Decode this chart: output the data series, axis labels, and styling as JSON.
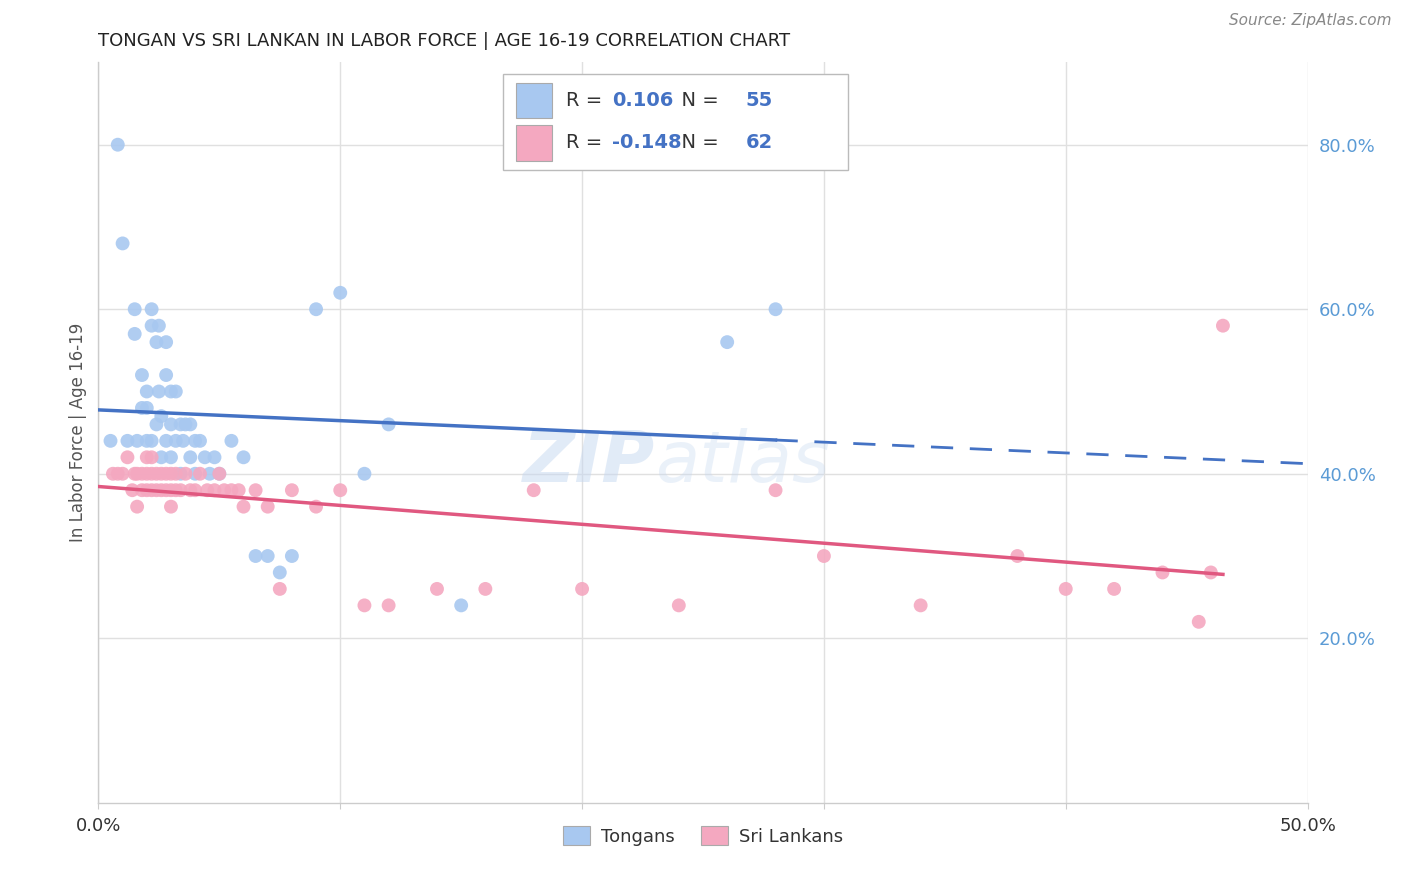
{
  "title": "TONGAN VS SRI LANKAN IN LABOR FORCE | AGE 16-19 CORRELATION CHART",
  "source": "Source: ZipAtlas.com",
  "ylabel": "In Labor Force | Age 16-19",
  "xlim": [
    0.0,
    0.5
  ],
  "ylim": [
    0.0,
    0.9
  ],
  "xtick_positions": [
    0.0,
    0.1,
    0.2,
    0.3,
    0.4,
    0.5
  ],
  "xtick_labels": [
    "0.0%",
    "",
    "",
    "",
    "",
    "50.0%"
  ],
  "ytick_labels_right": [
    "20.0%",
    "40.0%",
    "60.0%",
    "80.0%"
  ],
  "ytick_positions_right": [
    0.2,
    0.4,
    0.6,
    0.8
  ],
  "grid_color": "#e0e0e0",
  "background_color": "#ffffff",
  "legend_R_blue": "0.106",
  "legend_N_blue": "55",
  "legend_R_pink": "-0.148",
  "legend_N_pink": "62",
  "blue_color": "#a8c8f0",
  "pink_color": "#f4a8c0",
  "line_blue_color": "#4472c4",
  "line_pink_color": "#e05880",
  "tongan_x": [
    0.005,
    0.008,
    0.01,
    0.012,
    0.015,
    0.015,
    0.016,
    0.018,
    0.018,
    0.02,
    0.02,
    0.02,
    0.022,
    0.022,
    0.022,
    0.024,
    0.024,
    0.025,
    0.025,
    0.026,
    0.026,
    0.028,
    0.028,
    0.028,
    0.03,
    0.03,
    0.03,
    0.032,
    0.032,
    0.034,
    0.034,
    0.035,
    0.036,
    0.038,
    0.038,
    0.04,
    0.04,
    0.042,
    0.044,
    0.046,
    0.048,
    0.05,
    0.055,
    0.06,
    0.065,
    0.07,
    0.075,
    0.08,
    0.09,
    0.1,
    0.11,
    0.12,
    0.15,
    0.26,
    0.28
  ],
  "tongan_y": [
    0.44,
    0.8,
    0.68,
    0.44,
    0.6,
    0.57,
    0.44,
    0.52,
    0.48,
    0.5,
    0.48,
    0.44,
    0.58,
    0.6,
    0.44,
    0.56,
    0.46,
    0.58,
    0.5,
    0.47,
    0.42,
    0.56,
    0.52,
    0.44,
    0.5,
    0.46,
    0.42,
    0.5,
    0.44,
    0.46,
    0.4,
    0.44,
    0.46,
    0.46,
    0.42,
    0.44,
    0.4,
    0.44,
    0.42,
    0.4,
    0.42,
    0.4,
    0.44,
    0.42,
    0.3,
    0.3,
    0.28,
    0.3,
    0.6,
    0.62,
    0.4,
    0.46,
    0.24,
    0.56,
    0.6
  ],
  "srilanka_x": [
    0.006,
    0.008,
    0.01,
    0.012,
    0.014,
    0.015,
    0.016,
    0.016,
    0.018,
    0.018,
    0.02,
    0.02,
    0.02,
    0.022,
    0.022,
    0.022,
    0.024,
    0.024,
    0.026,
    0.026,
    0.028,
    0.028,
    0.03,
    0.03,
    0.03,
    0.032,
    0.032,
    0.034,
    0.036,
    0.038,
    0.04,
    0.042,
    0.045,
    0.048,
    0.05,
    0.052,
    0.055,
    0.058,
    0.06,
    0.065,
    0.07,
    0.075,
    0.08,
    0.09,
    0.1,
    0.11,
    0.12,
    0.14,
    0.16,
    0.18,
    0.2,
    0.24,
    0.28,
    0.3,
    0.34,
    0.38,
    0.4,
    0.42,
    0.44,
    0.455,
    0.46,
    0.465
  ],
  "srilanka_y": [
    0.4,
    0.4,
    0.4,
    0.42,
    0.38,
    0.4,
    0.4,
    0.36,
    0.4,
    0.38,
    0.42,
    0.4,
    0.38,
    0.42,
    0.4,
    0.38,
    0.4,
    0.38,
    0.4,
    0.38,
    0.4,
    0.38,
    0.4,
    0.38,
    0.36,
    0.4,
    0.38,
    0.38,
    0.4,
    0.38,
    0.38,
    0.4,
    0.38,
    0.38,
    0.4,
    0.38,
    0.38,
    0.38,
    0.36,
    0.38,
    0.36,
    0.26,
    0.38,
    0.36,
    0.38,
    0.24,
    0.24,
    0.26,
    0.26,
    0.38,
    0.26,
    0.24,
    0.38,
    0.3,
    0.24,
    0.3,
    0.26,
    0.26,
    0.28,
    0.22,
    0.28,
    0.58
  ]
}
